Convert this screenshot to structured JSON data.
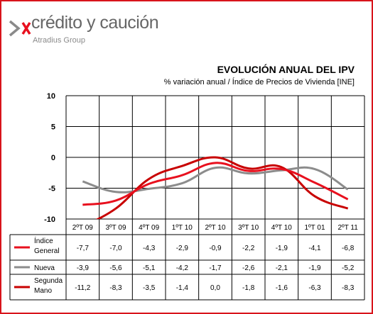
{
  "logo": {
    "brand": "crédito y caución",
    "sub": "Atradius Group",
    "mark_icon": "chevron-mark-icon"
  },
  "colors": {
    "frame": "#d8141b",
    "indice_general": "#e8101e",
    "nueva": "#8c8c8c",
    "segunda_mano": "#c80000",
    "grid": "#000000"
  },
  "chart_data": {
    "type": "line",
    "title": "EVOLUCIÓN ANUAL DEL IPV",
    "subtitle": "% variación anual / Índice de Precios de Vivienda [INE]",
    "categories": [
      "2ºT 09",
      "3ºT 09",
      "4ºT 09",
      "1ºT 10",
      "2ºT 10",
      "3ºT 10",
      "4ºT 10",
      "1ºT 01",
      "2ºT 11"
    ],
    "ylim": [
      -10,
      10
    ],
    "yticks": [
      10,
      5,
      0,
      -5,
      -10
    ],
    "grid": true,
    "legend": "table-below",
    "series": [
      {
        "key": "indice_general",
        "name": "Índice General",
        "label_lines": [
          "Índice",
          "General"
        ],
        "values": [
          -7.7,
          -7.0,
          -4.3,
          -2.9,
          -0.9,
          -2.2,
          -1.9,
          -4.1,
          -6.8
        ],
        "labels": [
          "-7,7",
          "-7,0",
          "-4,3",
          "-2,9",
          "-0,9",
          "-2,2",
          "-1,9",
          "-4,1",
          "-6,8"
        ]
      },
      {
        "key": "nueva",
        "name": "Nueva",
        "label_lines": [
          "Nueva"
        ],
        "values": [
          -3.9,
          -5.6,
          -5.1,
          -4.2,
          -1.7,
          -2.6,
          -2.1,
          -1.9,
          -5.2
        ],
        "labels": [
          "-3,9",
          "-5,6",
          "-5,1",
          "-4,2",
          "-1,7",
          "-2,6",
          "-2,1",
          "-1,9",
          "-5,2"
        ]
      },
      {
        "key": "segunda_mano",
        "name": "Segunda Mano",
        "label_lines": [
          "Segunda",
          "Mano"
        ],
        "values": [
          -11.2,
          -8.3,
          -3.5,
          -1.4,
          0.0,
          -1.8,
          -1.6,
          -6.3,
          -8.3
        ],
        "labels": [
          "-11,2",
          "-8,3",
          "-3,5",
          "-1,4",
          "0,0",
          "-1,8",
          "-1,6",
          "-6,3",
          "-8,3"
        ]
      }
    ]
  }
}
